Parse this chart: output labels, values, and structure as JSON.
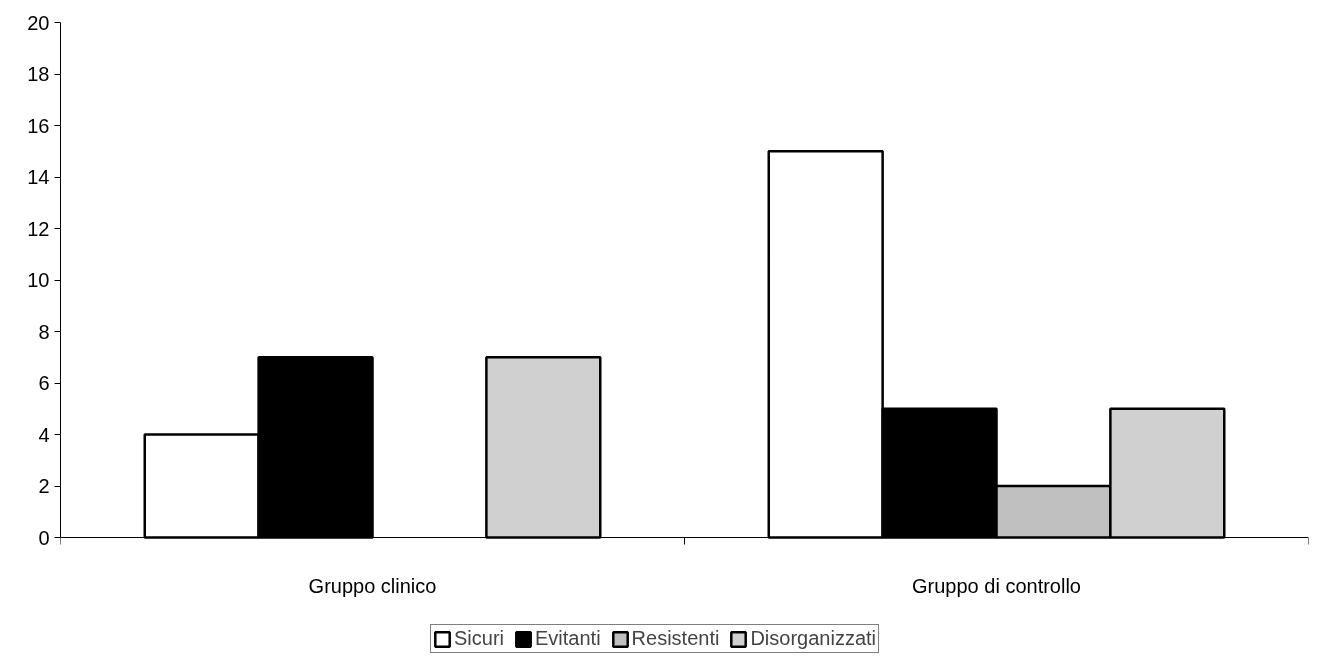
{
  "chart_data": {
    "type": "bar",
    "categories": [
      "Gruppo clinico",
      "Gruppo di controllo"
    ],
    "series": [
      {
        "name": "Sicuri",
        "color": "#ffffff",
        "values": [
          4,
          15
        ]
      },
      {
        "name": "Evitanti",
        "color": "#000000",
        "values": [
          7,
          5
        ]
      },
      {
        "name": "Resistenti",
        "color": "#c0c0c0",
        "values": [
          null,
          2
        ]
      },
      {
        "name": "Disorganizzati",
        "color": "#d0d0d0",
        "values": [
          7,
          5
        ]
      }
    ],
    "ylim": [
      0,
      20
    ],
    "yticks": [
      0,
      2,
      4,
      6,
      8,
      10,
      12,
      14,
      16,
      18,
      20
    ],
    "grid": false,
    "legend": "bottom"
  }
}
